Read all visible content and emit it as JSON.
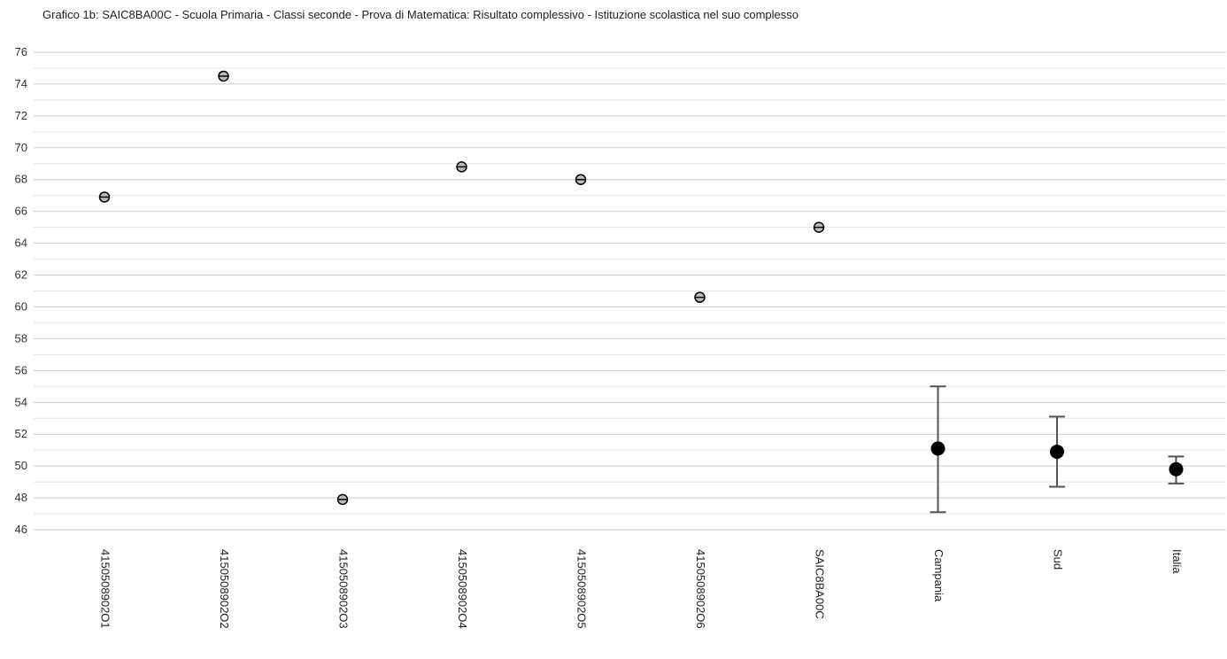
{
  "chart_data": {
    "type": "scatter",
    "title": "Grafico 1b: SAIC8BA00C - Scuola Primaria - Classi seconde - Prova di Matematica: Risultato complessivo - Istituzione scolastica nel suo complesso",
    "xlabel": "",
    "ylabel": "",
    "ylim": [
      46,
      76
    ],
    "y_ticks": [
      46,
      48,
      50,
      52,
      54,
      56,
      58,
      60,
      62,
      64,
      66,
      68,
      70,
      72,
      74,
      76
    ],
    "grid": true,
    "minor_grid": true,
    "legend": "none",
    "categories": [
      "4150508902O1",
      "4150508902O2",
      "4150508902O3",
      "4150508902O4",
      "4150508902O5",
      "4150508902O6",
      "SAIC8BA00C",
      "Campania",
      "Sud",
      "Italia"
    ],
    "points": [
      {
        "category": "4150508902O1",
        "value": 66.9,
        "style": "hollow"
      },
      {
        "category": "4150508902O2",
        "value": 74.5,
        "style": "hollow"
      },
      {
        "category": "4150508902O3",
        "value": 47.9,
        "style": "hollow"
      },
      {
        "category": "4150508902O4",
        "value": 68.8,
        "style": "hollow"
      },
      {
        "category": "4150508902O5",
        "value": 68.0,
        "style": "hollow"
      },
      {
        "category": "4150508902O6",
        "value": 60.6,
        "style": "hollow"
      },
      {
        "category": "SAIC8BA00C",
        "value": 65.0,
        "style": "hollow"
      },
      {
        "category": "Campania",
        "value": 51.1,
        "low": 47.1,
        "high": 55.0,
        "style": "filled"
      },
      {
        "category": "Sud",
        "value": 50.9,
        "low": 48.7,
        "high": 53.1,
        "style": "filled"
      },
      {
        "category": "Italia",
        "value": 49.8,
        "low": 48.9,
        "high": 50.6,
        "style": "filled"
      }
    ],
    "colors": {
      "grid": "#cccccc",
      "marker": "#000000",
      "hollow_fill": "#bbbbbb",
      "error_bar": "#555555"
    }
  }
}
